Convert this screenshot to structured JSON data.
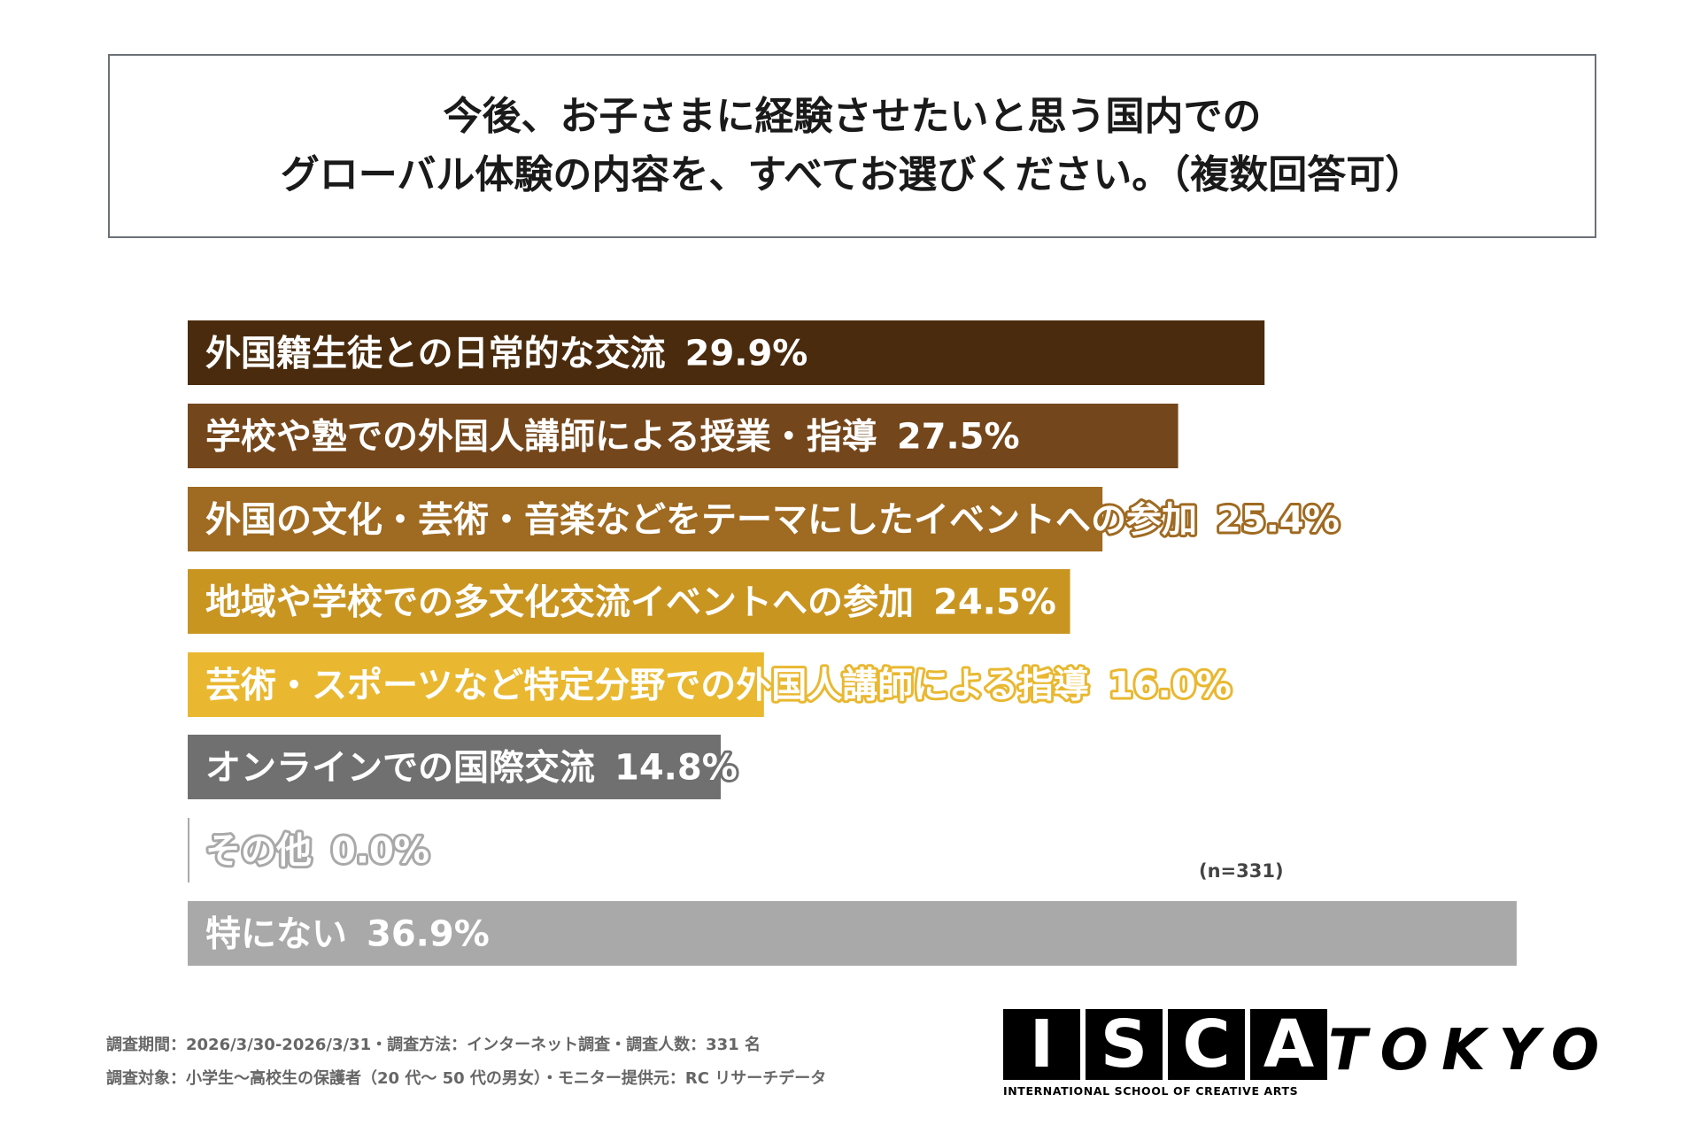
{
  "header": {
    "title_line1": "今後、お子さまに経験させたいと思う国内での",
    "title_line2": "グローバル体験の内容を、すべてお選びください。（複数回答可）"
  },
  "chart_data": {
    "type": "bar",
    "orientation": "horizontal",
    "categories": [
      "外国籍生徒との日常的な交流",
      "学校や塾での外国人講師による授業・指導",
      "外国の文化・芸術・音楽などをテーマにしたイベントへの参加",
      "地域や学校での多文化交流イベントへの参加",
      "芸術・スポーツなど特定分野での外国人講師による指導",
      "オンラインでの国際交流",
      "その他",
      "特にない"
    ],
    "values": [
      29.9,
      27.5,
      25.4,
      24.5,
      16.0,
      14.8,
      0.0,
      36.9
    ],
    "value_labels": [
      "29.9%",
      "27.5%",
      "25.4%",
      "24.5%",
      "16.0%",
      "14.8%",
      "0.0%",
      "36.9%"
    ],
    "colors": [
      "#4a2b0d",
      "#74461b",
      "#9f6a21",
      "#c99521",
      "#e9b830",
      "#707070",
      "#a9a9a9",
      "#a9a9a9"
    ],
    "xlim": [
      0,
      37
    ]
  },
  "sample_size": "(n=331)",
  "footnotes": {
    "line1": "調査期間：2026/3/30-2026/3/31・調査方法：インターネット調査・調査人数：331 名",
    "line2": "調査対象：小学生～高校生の保護者（20 代～ 50 代の男女）・モニター提供元：RC リサーチデータ"
  },
  "logo": {
    "letters": [
      "I",
      "S",
      "C",
      "A"
    ],
    "tagline": "INTERNATIONAL SCHOOL OF CREATIVE ARTS",
    "city": "TOKYO"
  }
}
